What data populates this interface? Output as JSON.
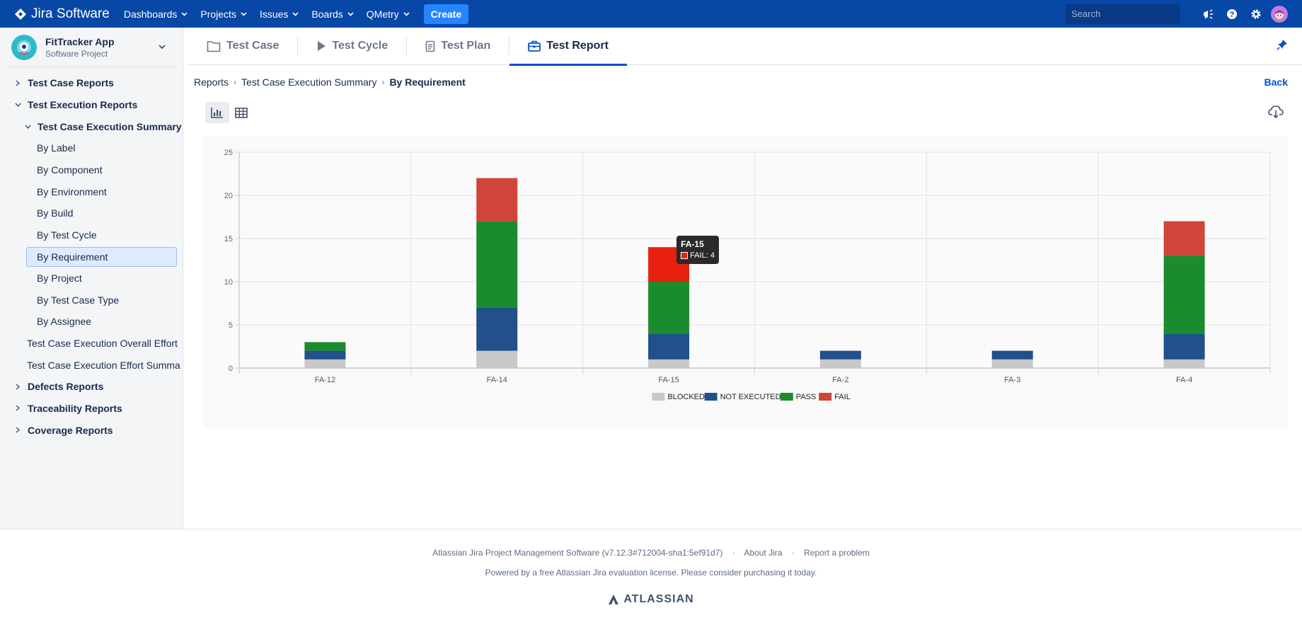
{
  "topnav": {
    "brand": "Jira Software",
    "items": [
      {
        "label": "Dashboards"
      },
      {
        "label": "Projects"
      },
      {
        "label": "Issues"
      },
      {
        "label": "Boards"
      },
      {
        "label": "QMetry"
      }
    ],
    "create_label": "Create",
    "search_placeholder": "Search",
    "icons": [
      "megaphone-icon",
      "help-icon",
      "settings-icon",
      "user-avatar"
    ]
  },
  "project": {
    "name": "FitTracker App",
    "type": "Software Project"
  },
  "sidebar": {
    "items": [
      {
        "label": "Test Case Reports",
        "expanded": false
      },
      {
        "label": "Test Execution Reports",
        "expanded": true
      },
      {
        "label": "Test Case Execution Summary",
        "expanded": true
      },
      {
        "label": "By Label"
      },
      {
        "label": "By Component"
      },
      {
        "label": "By Environment"
      },
      {
        "label": "By Build"
      },
      {
        "label": "By Test Cycle"
      },
      {
        "label": "By Requirement",
        "selected": true
      },
      {
        "label": "By Project"
      },
      {
        "label": "By Test Case Type"
      },
      {
        "label": "By Assignee"
      },
      {
        "label": "Test Case Execution Overall Effort"
      },
      {
        "label": "Test Case Execution Effort Summa"
      },
      {
        "label": "Defects Reports",
        "expanded": false
      },
      {
        "label": "Traceability Reports",
        "expanded": false
      },
      {
        "label": "Coverage Reports",
        "expanded": false
      }
    ]
  },
  "tabs": [
    {
      "label": "Test Case"
    },
    {
      "label": "Test Cycle"
    },
    {
      "label": "Test Plan"
    },
    {
      "label": "Test Report",
      "active": true
    }
  ],
  "breadcrumb": {
    "items": [
      "Reports",
      "Test Case Execution Summary",
      "By Requirement"
    ]
  },
  "back_label": "Back",
  "chart_data": {
    "type": "bar",
    "stacked": true,
    "categories": [
      "FA-12",
      "FA-14",
      "FA-15",
      "FA-2",
      "FA-3",
      "FA-4"
    ],
    "series": [
      {
        "name": "BLOCKED",
        "color": "#c8c8c8",
        "values": [
          1,
          2,
          1,
          1,
          1,
          1
        ]
      },
      {
        "name": "NOT EXECUTED",
        "color": "#21508a",
        "values": [
          1,
          5,
          3,
          1,
          1,
          3
        ]
      },
      {
        "name": "PASS",
        "color": "#1b8c2e",
        "values": [
          1,
          10,
          6,
          0,
          0,
          9
        ]
      },
      {
        "name": "FAIL",
        "color": "#d0443a",
        "values": [
          0,
          5,
          4,
          0,
          0,
          4
        ]
      }
    ],
    "ylim": [
      0,
      25
    ],
    "yticks": [
      0,
      5,
      10,
      15,
      20,
      25
    ],
    "grid": true,
    "legend": "bottom",
    "highlight": {
      "category": "FA-15",
      "series": "FAIL",
      "color": "#e8200f"
    }
  },
  "tooltip": {
    "title": "FA-15",
    "text": "FAIL: 4"
  },
  "footer": {
    "software": "Atlassian Jira Project Management Software (v7.12.3#712004-sha1:5ef91d7)",
    "about": "About Jira",
    "report": "Report a problem",
    "license": "Powered by a free Atlassian Jira evaluation license. Please consider purchasing it today.",
    "brand": "ATLASSIAN"
  }
}
